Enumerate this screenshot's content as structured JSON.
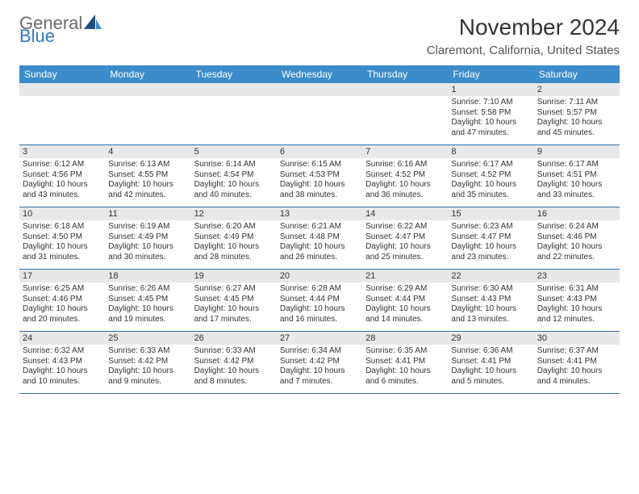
{
  "colors": {
    "header_bg": "#3b8cca",
    "header_text": "#ffffff",
    "daynum_bg": "#e8e8e8",
    "separator": "#2f6fa8",
    "text": "#333333",
    "logo_gray": "#6b6b6b",
    "logo_blue": "#2f7bbf",
    "background": "#ffffff"
  },
  "typography": {
    "title_fontsize": 28,
    "location_fontsize": 15,
    "dayhead_fontsize": 12,
    "daynum_fontsize": 11,
    "info_fontsize": 10,
    "font_family": "Arial"
  },
  "logo": {
    "text1": "General",
    "text2": "Blue"
  },
  "title": "November 2024",
  "location": "Claremont, California, United States",
  "day_names": [
    "Sunday",
    "Monday",
    "Tuesday",
    "Wednesday",
    "Thursday",
    "Friday",
    "Saturday"
  ],
  "layout": {
    "columns": 7,
    "rows": 5
  },
  "weeks": [
    [
      {
        "n": "",
        "sr": "",
        "ss": "",
        "dl": ""
      },
      {
        "n": "",
        "sr": "",
        "ss": "",
        "dl": ""
      },
      {
        "n": "",
        "sr": "",
        "ss": "",
        "dl": ""
      },
      {
        "n": "",
        "sr": "",
        "ss": "",
        "dl": ""
      },
      {
        "n": "",
        "sr": "",
        "ss": "",
        "dl": ""
      },
      {
        "n": "1",
        "sr": "Sunrise: 7:10 AM",
        "ss": "Sunset: 5:58 PM",
        "dl": "Daylight: 10 hours and 47 minutes."
      },
      {
        "n": "2",
        "sr": "Sunrise: 7:11 AM",
        "ss": "Sunset: 5:57 PM",
        "dl": "Daylight: 10 hours and 45 minutes."
      }
    ],
    [
      {
        "n": "3",
        "sr": "Sunrise: 6:12 AM",
        "ss": "Sunset: 4:56 PM",
        "dl": "Daylight: 10 hours and 43 minutes."
      },
      {
        "n": "4",
        "sr": "Sunrise: 6:13 AM",
        "ss": "Sunset: 4:55 PM",
        "dl": "Daylight: 10 hours and 42 minutes."
      },
      {
        "n": "5",
        "sr": "Sunrise: 6:14 AM",
        "ss": "Sunset: 4:54 PM",
        "dl": "Daylight: 10 hours and 40 minutes."
      },
      {
        "n": "6",
        "sr": "Sunrise: 6:15 AM",
        "ss": "Sunset: 4:53 PM",
        "dl": "Daylight: 10 hours and 38 minutes."
      },
      {
        "n": "7",
        "sr": "Sunrise: 6:16 AM",
        "ss": "Sunset: 4:52 PM",
        "dl": "Daylight: 10 hours and 36 minutes."
      },
      {
        "n": "8",
        "sr": "Sunrise: 6:17 AM",
        "ss": "Sunset: 4:52 PM",
        "dl": "Daylight: 10 hours and 35 minutes."
      },
      {
        "n": "9",
        "sr": "Sunrise: 6:17 AM",
        "ss": "Sunset: 4:51 PM",
        "dl": "Daylight: 10 hours and 33 minutes."
      }
    ],
    [
      {
        "n": "10",
        "sr": "Sunrise: 6:18 AM",
        "ss": "Sunset: 4:50 PM",
        "dl": "Daylight: 10 hours and 31 minutes."
      },
      {
        "n": "11",
        "sr": "Sunrise: 6:19 AM",
        "ss": "Sunset: 4:49 PM",
        "dl": "Daylight: 10 hours and 30 minutes."
      },
      {
        "n": "12",
        "sr": "Sunrise: 6:20 AM",
        "ss": "Sunset: 4:49 PM",
        "dl": "Daylight: 10 hours and 28 minutes."
      },
      {
        "n": "13",
        "sr": "Sunrise: 6:21 AM",
        "ss": "Sunset: 4:48 PM",
        "dl": "Daylight: 10 hours and 26 minutes."
      },
      {
        "n": "14",
        "sr": "Sunrise: 6:22 AM",
        "ss": "Sunset: 4:47 PM",
        "dl": "Daylight: 10 hours and 25 minutes."
      },
      {
        "n": "15",
        "sr": "Sunrise: 6:23 AM",
        "ss": "Sunset: 4:47 PM",
        "dl": "Daylight: 10 hours and 23 minutes."
      },
      {
        "n": "16",
        "sr": "Sunrise: 6:24 AM",
        "ss": "Sunset: 4:46 PM",
        "dl": "Daylight: 10 hours and 22 minutes."
      }
    ],
    [
      {
        "n": "17",
        "sr": "Sunrise: 6:25 AM",
        "ss": "Sunset: 4:46 PM",
        "dl": "Daylight: 10 hours and 20 minutes."
      },
      {
        "n": "18",
        "sr": "Sunrise: 6:26 AM",
        "ss": "Sunset: 4:45 PM",
        "dl": "Daylight: 10 hours and 19 minutes."
      },
      {
        "n": "19",
        "sr": "Sunrise: 6:27 AM",
        "ss": "Sunset: 4:45 PM",
        "dl": "Daylight: 10 hours and 17 minutes."
      },
      {
        "n": "20",
        "sr": "Sunrise: 6:28 AM",
        "ss": "Sunset: 4:44 PM",
        "dl": "Daylight: 10 hours and 16 minutes."
      },
      {
        "n": "21",
        "sr": "Sunrise: 6:29 AM",
        "ss": "Sunset: 4:44 PM",
        "dl": "Daylight: 10 hours and 14 minutes."
      },
      {
        "n": "22",
        "sr": "Sunrise: 6:30 AM",
        "ss": "Sunset: 4:43 PM",
        "dl": "Daylight: 10 hours and 13 minutes."
      },
      {
        "n": "23",
        "sr": "Sunrise: 6:31 AM",
        "ss": "Sunset: 4:43 PM",
        "dl": "Daylight: 10 hours and 12 minutes."
      }
    ],
    [
      {
        "n": "24",
        "sr": "Sunrise: 6:32 AM",
        "ss": "Sunset: 4:43 PM",
        "dl": "Daylight: 10 hours and 10 minutes."
      },
      {
        "n": "25",
        "sr": "Sunrise: 6:33 AM",
        "ss": "Sunset: 4:42 PM",
        "dl": "Daylight: 10 hours and 9 minutes."
      },
      {
        "n": "26",
        "sr": "Sunrise: 6:33 AM",
        "ss": "Sunset: 4:42 PM",
        "dl": "Daylight: 10 hours and 8 minutes."
      },
      {
        "n": "27",
        "sr": "Sunrise: 6:34 AM",
        "ss": "Sunset: 4:42 PM",
        "dl": "Daylight: 10 hours and 7 minutes."
      },
      {
        "n": "28",
        "sr": "Sunrise: 6:35 AM",
        "ss": "Sunset: 4:41 PM",
        "dl": "Daylight: 10 hours and 6 minutes."
      },
      {
        "n": "29",
        "sr": "Sunrise: 6:36 AM",
        "ss": "Sunset: 4:41 PM",
        "dl": "Daylight: 10 hours and 5 minutes."
      },
      {
        "n": "30",
        "sr": "Sunrise: 6:37 AM",
        "ss": "Sunset: 4:41 PM",
        "dl": "Daylight: 10 hours and 4 minutes."
      }
    ]
  ]
}
